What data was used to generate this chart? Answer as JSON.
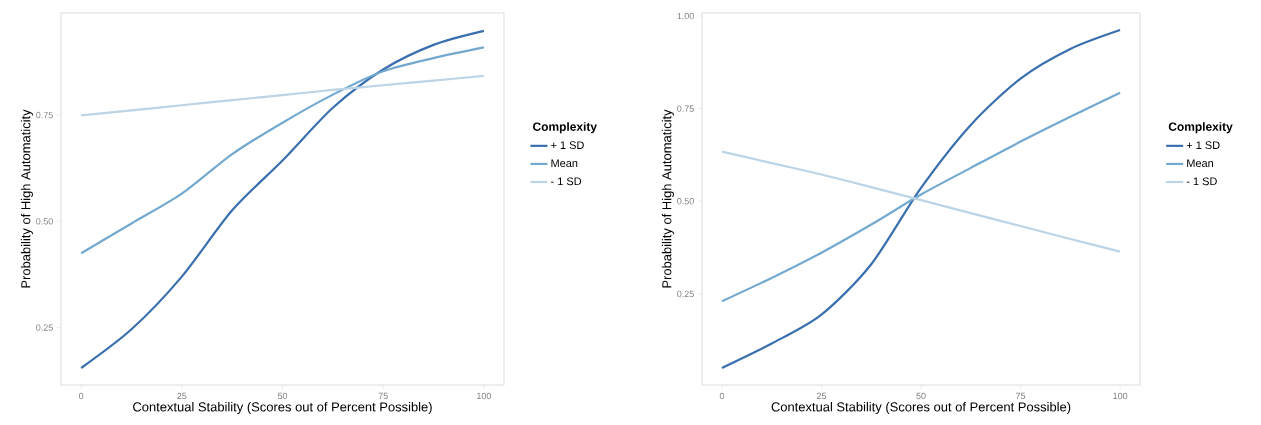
{
  "chart_data": [
    {
      "type": "line",
      "xlabel": "Contextual Stability (Scores out of Percent Possible)",
      "ylabel": "Probability of High Automaticity",
      "legend_title": "Complexity",
      "legend": "right",
      "x": [
        0,
        12.5,
        25,
        37.5,
        50,
        62.5,
        75,
        87.5,
        100
      ],
      "series": [
        {
          "name": "+ 1 SD",
          "color": "#3a6faf",
          "values": [
            0.155,
            0.246,
            0.37,
            0.526,
            0.643,
            0.767,
            0.857,
            0.915,
            0.948
          ]
        },
        {
          "name": "Mean",
          "color": "#74a9cf",
          "values": [
            0.425,
            0.495,
            0.565,
            0.658,
            0.732,
            0.798,
            0.853,
            0.884,
            0.909
          ]
        },
        {
          "name": "- 1 SD",
          "color": "#bcd4e6",
          "values": [
            0.749,
            0.761,
            0.773,
            0.785,
            0.797,
            0.809,
            0.82,
            0.831,
            0.842
          ]
        }
      ],
      "xlim": [
        -5,
        105
      ],
      "ylim": [
        0.115,
        0.99
      ],
      "xticks": [
        0,
        25,
        50,
        75,
        100
      ],
      "yticks": [
        {
          "value": 0.25,
          "label": "0.25"
        },
        {
          "value": 0.5,
          "label": "0.50"
        },
        {
          "value": 0.75,
          "label": "0.75"
        }
      ]
    },
    {
      "type": "line",
      "xlabel": "Contextual Stability (Scores out of Percent Possible)",
      "ylabel": "Probability of High Automaticity",
      "legend_title": "Complexity",
      "legend": "right",
      "x": [
        0,
        12.5,
        25,
        37.5,
        50,
        62.5,
        75,
        87.5,
        100
      ],
      "series": [
        {
          "name": "+ 1 SD",
          "color": "#3a6faf",
          "values": [
            0.05,
            0.116,
            0.194,
            0.33,
            0.536,
            0.706,
            0.831,
            0.911,
            0.962
          ]
        },
        {
          "name": "Mean",
          "color": "#74a9cf",
          "values": [
            0.23,
            0.293,
            0.361,
            0.437,
            0.518,
            0.59,
            0.661,
            0.728,
            0.793
          ]
        },
        {
          "name": "- 1 SD",
          "color": "#bcd4e6",
          "values": [
            0.634,
            0.603,
            0.572,
            0.538,
            0.503,
            0.468,
            0.433,
            0.398,
            0.364
          ]
        }
      ],
      "xlim": [
        -5,
        105
      ],
      "ylim": [
        0.004,
        1.008
      ],
      "xticks": [
        0,
        25,
        50,
        75,
        100
      ],
      "yticks": [
        {
          "value": 0.25,
          "label": "0.25"
        },
        {
          "value": 0.5,
          "label": "0.50"
        },
        {
          "value": 0.75,
          "label": "0.75"
        },
        {
          "value": 1.0,
          "label": "1.00"
        }
      ]
    }
  ]
}
